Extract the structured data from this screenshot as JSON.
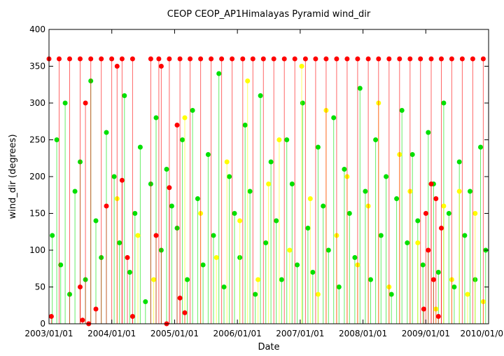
{
  "chart_data": {
    "type": "scatter",
    "title": "CEOP CEOP_AP1Himalayas Pyramid  wind_dir",
    "xlabel": "Date",
    "ylabel": "wind_dir (degrees)",
    "xlim": [
      "2003-01-01",
      "2010-01-01"
    ],
    "ylim": [
      0,
      400
    ],
    "x_ticks": [
      "2003/01/01",
      "2004/01/01",
      "2005/01/01",
      "2006/01/01",
      "2007/01/01",
      "2008/01/01",
      "2009/01/01",
      "2010/01/0"
    ],
    "y_ticks": [
      0,
      50,
      100,
      150,
      200,
      250,
      300,
      350,
      400
    ],
    "grid": false,
    "legend": "none",
    "colors": {
      "green": "#00e000",
      "yellow": "#ffff00",
      "red": "#ff0000"
    },
    "series": [
      {
        "color": "green",
        "x": [
          "2003-01-20",
          "2003-02-15",
          "2003-03-10",
          "2003-04-05",
          "2003-05-01",
          "2003-06-01",
          "2003-07-01",
          "2003-08-01",
          "2003-09-01",
          "2003-10-01",
          "2003-11-01",
          "2003-12-01",
          "2004-01-15",
          "2004-02-15",
          "2004-03-15",
          "2004-04-15",
          "2004-05-15",
          "2004-06-15",
          "2004-07-15",
          "2004-08-15",
          "2004-09-15",
          "2004-10-15",
          "2004-11-15",
          "2004-12-15",
          "2005-01-15",
          "2005-02-15",
          "2005-03-15",
          "2005-04-15",
          "2005-05-15",
          "2005-06-15",
          "2005-07-15",
          "2005-08-15",
          "2005-09-15",
          "2005-10-15",
          "2005-11-15",
          "2005-12-15",
          "2006-01-15",
          "2006-02-15",
          "2006-03-15",
          "2006-04-15",
          "2006-05-15",
          "2006-06-15",
          "2006-07-15",
          "2006-08-15",
          "2006-09-15",
          "2006-10-15",
          "2006-11-15",
          "2006-12-15",
          "2007-01-15",
          "2007-02-15",
          "2007-03-15",
          "2007-04-15",
          "2007-05-15",
          "2007-06-15",
          "2007-07-15",
          "2007-08-15",
          "2007-09-15",
          "2007-10-15",
          "2007-11-15",
          "2007-12-15",
          "2008-01-15",
          "2008-02-15",
          "2008-03-15",
          "2008-04-15",
          "2008-05-15",
          "2008-06-15",
          "2008-07-15",
          "2008-08-15",
          "2008-09-15",
          "2008-10-15",
          "2008-11-15",
          "2008-12-15",
          "2009-01-15",
          "2009-02-15",
          "2009-03-15",
          "2009-04-15",
          "2009-05-15",
          "2009-06-15",
          "2009-07-15",
          "2009-08-15",
          "2009-09-15",
          "2009-10-15",
          "2009-11-15",
          "2009-12-15"
        ],
        "y": [
          120,
          250,
          80,
          300,
          40,
          180,
          220,
          60,
          330,
          140,
          90,
          260,
          200,
          110,
          310,
          70,
          150,
          240,
          30,
          190,
          280,
          100,
          210,
          160,
          130,
          250,
          60,
          290,
          170,
          80,
          230,
          120,
          340,
          50,
          200,
          150,
          90,
          270,
          180,
          40,
          310,
          110,
          220,
          140,
          60,
          250,
          190,
          80,
          300,
          130,
          70,
          240,
          160,
          100,
          280,
          50,
          210,
          150,
          90,
          320,
          180,
          60,
          250,
          120,
          200,
          40,
          170,
          290,
          110,
          230,
          140,
          80,
          260,
          190,
          70,
          300,
          150,
          50,
          220,
          120,
          180,
          60,
          240,
          100
        ]
      },
      {
        "color": "yellow",
        "x": [
          "2004-02-01",
          "2004-06-01",
          "2004-09-01",
          "2005-03-01",
          "2005-06-01",
          "2005-09-01",
          "2005-11-01",
          "2006-01-15",
          "2006-03-01",
          "2006-05-01",
          "2006-07-01",
          "2006-09-01",
          "2006-11-01",
          "2007-01-10",
          "2007-03-01",
          "2007-04-15",
          "2007-06-01",
          "2007-08-01",
          "2007-10-01",
          "2007-12-01",
          "2008-02-01",
          "2008-04-01",
          "2008-06-01",
          "2008-08-01",
          "2008-10-01",
          "2008-11-15",
          "2009-03-01",
          "2009-04-15",
          "2009-06-01",
          "2009-07-15",
          "2009-09-01",
          "2009-10-15",
          "2009-12-01"
        ],
        "y": [
          170,
          120,
          60,
          280,
          150,
          90,
          220,
          140,
          330,
          60,
          190,
          250,
          100,
          350,
          170,
          40,
          290,
          120,
          200,
          80,
          160,
          300,
          50,
          230,
          180,
          110,
          20,
          160,
          60,
          180,
          40,
          150,
          30
        ]
      },
      {
        "color": "red",
        "x": [
          "2003-01-15",
          "2003-07-01",
          "2003-07-15",
          "2003-08-01",
          "2003-08-20",
          "2003-10-01",
          "2003-12-01",
          "2004-02-01",
          "2004-03-01",
          "2004-04-01",
          "2004-05-01",
          "2004-09-15",
          "2004-10-15",
          "2004-11-15",
          "2004-12-01",
          "2005-01-15",
          "2005-02-01",
          "2005-03-01",
          "2008-12-20",
          "2009-01-01",
          "2009-01-15",
          "2009-02-01",
          "2009-02-15",
          "2009-03-01",
          "2009-03-15",
          "2009-04-01"
        ],
        "y": [
          10,
          50,
          5,
          300,
          0,
          20,
          160,
          350,
          195,
          90,
          10,
          120,
          350,
          0,
          185,
          270,
          35,
          15,
          20,
          150,
          100,
          190,
          60,
          170,
          10,
          130
        ]
      },
      {
        "color": "red",
        "x": [
          "2003-01-01",
          "2003-03-01",
          "2003-05-01",
          "2003-07-01",
          "2003-09-01",
          "2003-11-01",
          "2004-01-01",
          "2004-03-01",
          "2004-05-01",
          "2004-08-15",
          "2004-10-01",
          "2004-12-01",
          "2005-02-01",
          "2005-04-01",
          "2005-06-01",
          "2005-08-01",
          "2005-10-01",
          "2005-12-01",
          "2006-02-01",
          "2006-04-01",
          "2006-06-01",
          "2006-08-01",
          "2006-10-01",
          "2006-12-01",
          "2007-02-01",
          "2007-04-01",
          "2007-06-01",
          "2007-08-01",
          "2007-10-01",
          "2007-12-01",
          "2008-02-01",
          "2008-04-01",
          "2008-06-01",
          "2008-08-01",
          "2008-10-01",
          "2008-12-01",
          "2009-02-01",
          "2009-04-01",
          "2009-06-01",
          "2009-08-01",
          "2009-10-01",
          "2009-12-01"
        ],
        "y": [
          360,
          360,
          360,
          360,
          360,
          360,
          360,
          360,
          360,
          360,
          360,
          360,
          360,
          360,
          360,
          360,
          360,
          360,
          360,
          360,
          360,
          360,
          360,
          360,
          360,
          360,
          360,
          360,
          360,
          360,
          360,
          360,
          360,
          360,
          360,
          360,
          360,
          360,
          360,
          360,
          360,
          360
        ]
      }
    ]
  }
}
